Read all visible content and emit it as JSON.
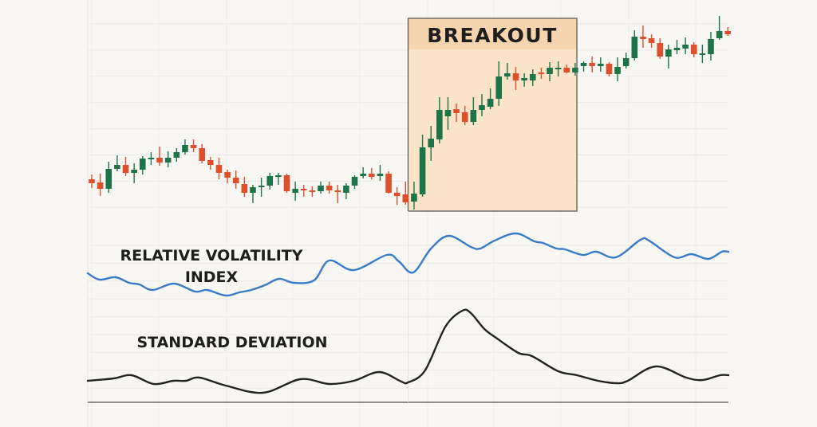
{
  "chart_data": [
    {
      "type": "candlestick",
      "annotation": {
        "label": "BREAKOUT",
        "start_index": 37.3,
        "end_index": 57.2,
        "price_top": 257,
        "price_bottom": 15
      },
      "grid": true,
      "colors": {
        "up": "#1d7446",
        "down": "#e04f2c",
        "annotation_fill": "#fbe4ca",
        "annotation_header": "#f6d4ae",
        "annotation_border": "#5a5a5a"
      },
      "ohlc": [
        [
          55,
          61,
          44,
          50
        ],
        [
          51,
          62,
          34,
          43
        ],
        [
          43,
          77,
          38,
          68
        ],
        [
          68,
          85,
          65,
          73
        ],
        [
          73,
          83,
          59,
          63
        ],
        [
          63,
          75,
          50,
          67
        ],
        [
          67,
          84,
          61,
          81
        ],
        [
          80,
          89,
          73,
          82
        ],
        [
          82,
          96,
          72,
          76
        ],
        [
          76,
          90,
          70,
          82
        ],
        [
          82,
          94,
          77,
          89
        ],
        [
          89,
          105,
          86,
          98
        ],
        [
          98,
          105,
          89,
          94
        ],
        [
          94,
          99,
          75,
          78
        ],
        [
          79,
          83,
          67,
          73
        ],
        [
          73,
          82,
          55,
          63
        ],
        [
          64,
          67,
          50,
          57
        ],
        [
          57,
          66,
          43,
          50
        ],
        [
          49,
          58,
          33,
          38
        ],
        [
          38,
          48,
          25,
          45
        ],
        [
          45,
          57,
          33,
          47
        ],
        [
          47,
          63,
          42,
          59
        ],
        [
          58,
          63,
          48,
          60
        ],
        [
          60,
          62,
          38,
          40
        ],
        [
          38,
          52,
          28,
          43
        ],
        [
          43,
          48,
          33,
          41
        ],
        [
          41,
          46,
          33,
          39
        ],
        [
          40,
          52,
          37,
          47
        ],
        [
          47,
          52,
          37,
          41
        ],
        [
          41,
          48,
          25,
          39
        ],
        [
          38,
          50,
          30,
          47
        ],
        [
          47,
          60,
          43,
          58
        ],
        [
          59,
          70,
          56,
          62
        ],
        [
          62,
          69,
          55,
          58
        ],
        [
          59,
          73,
          53,
          62
        ],
        [
          62,
          65,
          37,
          38
        ],
        [
          38,
          45,
          23,
          34
        ],
        [
          36,
          52,
          23,
          26
        ],
        [
          27,
          52,
          17,
          37
        ],
        [
          36,
          111,
          33,
          95
        ],
        [
          95,
          122,
          78,
          106
        ],
        [
          105,
          158,
          100,
          142
        ],
        [
          134,
          158,
          117,
          142
        ],
        [
          143,
          150,
          127,
          138
        ],
        [
          139,
          147,
          123,
          127
        ],
        [
          127,
          158,
          123,
          142
        ],
        [
          142,
          162,
          134,
          148
        ],
        [
          146,
          169,
          143,
          156
        ],
        [
          156,
          203,
          147,
          184
        ],
        [
          184,
          201,
          180,
          188
        ],
        [
          188,
          196,
          167,
          179
        ],
        [
          179,
          188,
          171,
          182
        ],
        [
          179,
          193,
          172,
          187
        ],
        [
          189,
          195,
          181,
          187
        ],
        [
          187,
          202,
          178,
          195
        ],
        [
          193,
          203,
          184,
          195
        ],
        [
          195,
          199,
          188,
          189
        ],
        [
          189,
          201,
          185,
          195
        ],
        [
          197,
          203,
          190,
          201
        ],
        [
          201,
          209,
          189,
          197
        ],
        [
          197,
          208,
          190,
          200
        ],
        [
          200,
          202,
          184,
          187
        ],
        [
          187,
          208,
          178,
          196
        ],
        [
          197,
          214,
          194,
          207
        ],
        [
          207,
          242,
          204,
          234
        ],
        [
          234,
          248,
          220,
          231
        ],
        [
          232,
          237,
          220,
          226
        ],
        [
          226,
          232,
          206,
          209
        ],
        [
          209,
          224,
          194,
          218
        ],
        [
          217,
          230,
          212,
          220
        ],
        [
          219,
          233,
          212,
          224
        ],
        [
          224,
          227,
          208,
          212
        ],
        [
          212,
          224,
          201,
          213
        ],
        [
          212,
          240,
          204,
          231
        ],
        [
          232,
          260,
          230,
          241
        ],
        [
          241,
          246,
          235,
          237
        ]
      ]
    },
    {
      "type": "line",
      "name": "RELATIVE VOLATILITY",
      "name_line2": "INDEX",
      "color": "#3a7bc8",
      "x": [
        -0.5,
        0.9,
        2.8,
        4.4,
        5.6,
        7.2,
        9.7,
        12.2,
        13.6,
        15.8,
        17.4,
        18.8,
        20.4,
        22.1,
        23.8,
        26.2,
        28.0,
        30.9,
        34.8,
        36.2,
        37.9,
        40.0,
        42.1,
        44.7,
        45.8,
        47.5,
        50.0,
        52.2,
        53.2,
        54.8,
        55.8,
        57.9,
        59.5,
        61.8,
        64.7,
        65.7,
        68.7,
        70.7,
        72.7,
        74.3,
        75.1
      ],
      "y": [
        37,
        29,
        32,
        25,
        23,
        16,
        24,
        14,
        16,
        9,
        13,
        16,
        22,
        30,
        25,
        28,
        53,
        41,
        60,
        52,
        38,
        68,
        84,
        70,
        68,
        78,
        87,
        77,
        75,
        68,
        67,
        60,
        64,
        57,
        79,
        78,
        57,
        61,
        55,
        64,
        64
      ]
    },
    {
      "type": "line",
      "name": "STANDARD DEVIATION",
      "color": "#222222",
      "x": [
        -0.5,
        2.6,
        4.7,
        7.3,
        9.6,
        11.1,
        12.7,
        15.8,
        20.2,
        24.6,
        28.0,
        30.9,
        33.9,
        36.5,
        37.3,
        39.3,
        41.7,
        43.7,
        44.7,
        46.3,
        47.8,
        50.3,
        51.9,
        55.0,
        57.2,
        59.7,
        61.9,
        63.2,
        66.5,
        70.1,
        72.0,
        74.1,
        75.1
      ],
      "y": [
        27,
        30,
        34,
        23,
        27,
        27,
        31,
        21,
        12,
        29,
        23,
        27,
        38,
        26,
        25,
        40,
        95,
        115,
        112,
        92,
        80,
        62,
        58,
        39,
        34,
        27,
        24,
        27,
        45,
        31,
        28,
        34,
        34
      ]
    }
  ]
}
